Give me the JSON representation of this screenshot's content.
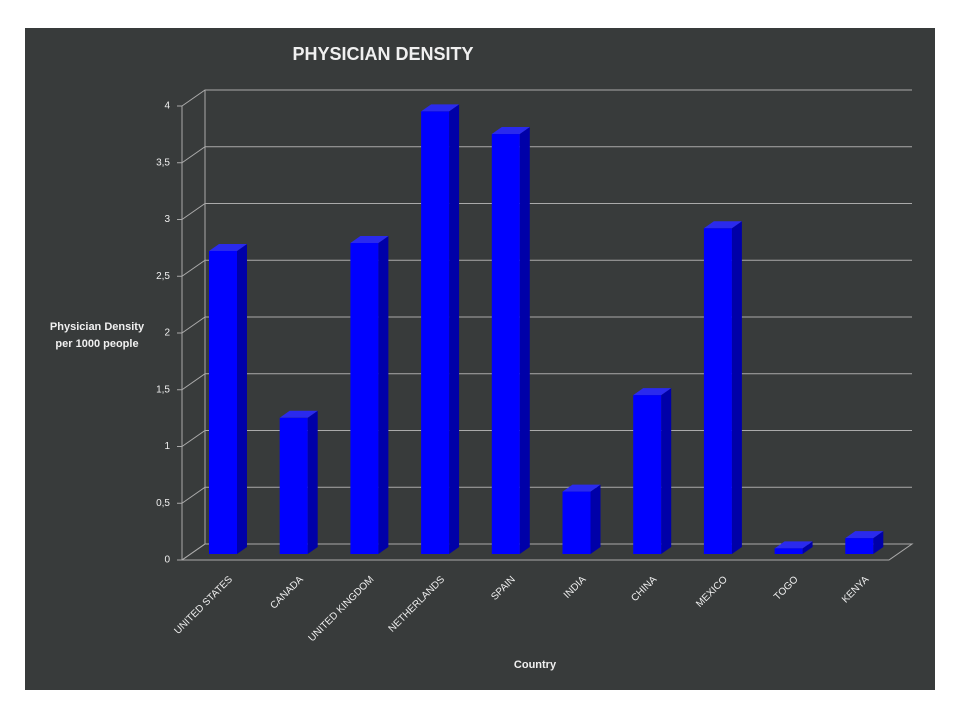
{
  "chart_data": {
    "type": "bar3d",
    "title": "PHYSICIAN DENSITY",
    "y_label": [
      "Physician  Density",
      "per 1000 people"
    ],
    "x_label": "Country",
    "categories": [
      "UNITED STATES",
      "CANADA",
      "UNITED KINGDOM",
      "NETHERLANDS",
      "SPAIN",
      "INDIA",
      "CHINA",
      "MEXICO",
      "TOGO",
      "KENYA"
    ],
    "values": [
      2.67,
      1.2,
      2.74,
      3.9,
      3.7,
      0.55,
      1.4,
      2.87,
      0.05,
      0.14
    ],
    "color": "#0000ff",
    "ylim": [
      0,
      4
    ],
    "yticks": [
      0,
      {
        "value": 0.5,
        "label": "0,5"
      },
      1,
      {
        "value": 1.5,
        "label": "1,5"
      },
      2,
      {
        "value": 2.5,
        "label": "2,5"
      },
      3,
      {
        "value": 3.5,
        "label": "3,5"
      },
      4
    ],
    "grid": true
  }
}
